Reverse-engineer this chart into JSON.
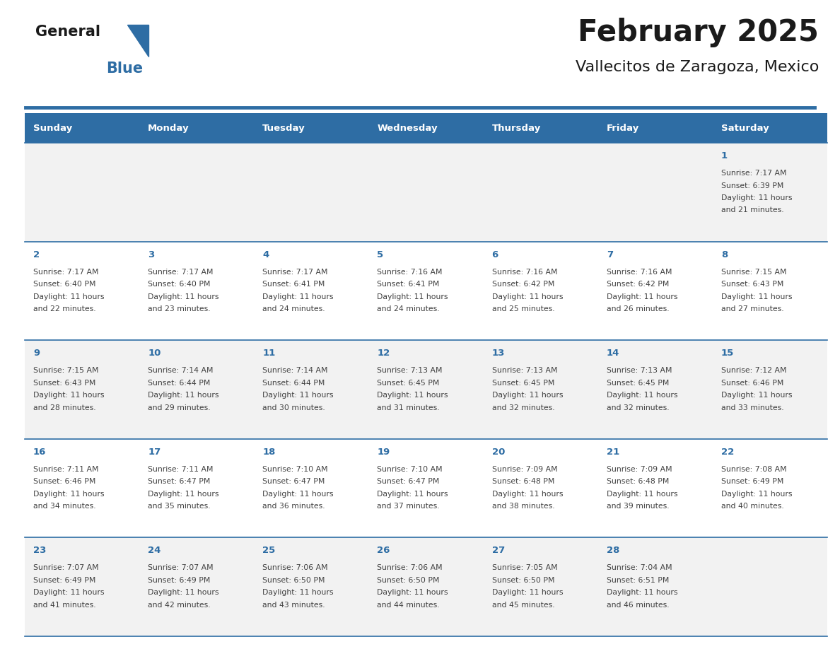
{
  "title": "February 2025",
  "subtitle": "Vallecitos de Zaragoza, Mexico",
  "days_of_week": [
    "Sunday",
    "Monday",
    "Tuesday",
    "Wednesday",
    "Thursday",
    "Friday",
    "Saturday"
  ],
  "header_bg": "#2E6DA4",
  "header_text": "#FFFFFF",
  "cell_bg_odd": "#F2F2F2",
  "cell_bg_even": "#FFFFFF",
  "divider_color": "#2E6DA4",
  "text_color": "#404040",
  "day_num_color": "#2E6DA4",
  "logo_general_color": "#1a1a1a",
  "logo_blue_color": "#2E6DA4",
  "logo_triangle_color": "#2E6DA4",
  "calendar_data": [
    [
      null,
      null,
      null,
      null,
      null,
      null,
      {
        "day": 1,
        "sunrise": "7:17 AM",
        "sunset": "6:39 PM",
        "daylight": "11 hours",
        "daylight2": "and 21 minutes."
      }
    ],
    [
      {
        "day": 2,
        "sunrise": "7:17 AM",
        "sunset": "6:40 PM",
        "daylight": "11 hours",
        "daylight2": "and 22 minutes."
      },
      {
        "day": 3,
        "sunrise": "7:17 AM",
        "sunset": "6:40 PM",
        "daylight": "11 hours",
        "daylight2": "and 23 minutes."
      },
      {
        "day": 4,
        "sunrise": "7:17 AM",
        "sunset": "6:41 PM",
        "daylight": "11 hours",
        "daylight2": "and 24 minutes."
      },
      {
        "day": 5,
        "sunrise": "7:16 AM",
        "sunset": "6:41 PM",
        "daylight": "11 hours",
        "daylight2": "and 24 minutes."
      },
      {
        "day": 6,
        "sunrise": "7:16 AM",
        "sunset": "6:42 PM",
        "daylight": "11 hours",
        "daylight2": "and 25 minutes."
      },
      {
        "day": 7,
        "sunrise": "7:16 AM",
        "sunset": "6:42 PM",
        "daylight": "11 hours",
        "daylight2": "and 26 minutes."
      },
      {
        "day": 8,
        "sunrise": "7:15 AM",
        "sunset": "6:43 PM",
        "daylight": "11 hours",
        "daylight2": "and 27 minutes."
      }
    ],
    [
      {
        "day": 9,
        "sunrise": "7:15 AM",
        "sunset": "6:43 PM",
        "daylight": "11 hours",
        "daylight2": "and 28 minutes."
      },
      {
        "day": 10,
        "sunrise": "7:14 AM",
        "sunset": "6:44 PM",
        "daylight": "11 hours",
        "daylight2": "and 29 minutes."
      },
      {
        "day": 11,
        "sunrise": "7:14 AM",
        "sunset": "6:44 PM",
        "daylight": "11 hours",
        "daylight2": "and 30 minutes."
      },
      {
        "day": 12,
        "sunrise": "7:13 AM",
        "sunset": "6:45 PM",
        "daylight": "11 hours",
        "daylight2": "and 31 minutes."
      },
      {
        "day": 13,
        "sunrise": "7:13 AM",
        "sunset": "6:45 PM",
        "daylight": "11 hours",
        "daylight2": "and 32 minutes."
      },
      {
        "day": 14,
        "sunrise": "7:13 AM",
        "sunset": "6:45 PM",
        "daylight": "11 hours",
        "daylight2": "and 32 minutes."
      },
      {
        "day": 15,
        "sunrise": "7:12 AM",
        "sunset": "6:46 PM",
        "daylight": "11 hours",
        "daylight2": "and 33 minutes."
      }
    ],
    [
      {
        "day": 16,
        "sunrise": "7:11 AM",
        "sunset": "6:46 PM",
        "daylight": "11 hours",
        "daylight2": "and 34 minutes."
      },
      {
        "day": 17,
        "sunrise": "7:11 AM",
        "sunset": "6:47 PM",
        "daylight": "11 hours",
        "daylight2": "and 35 minutes."
      },
      {
        "day": 18,
        "sunrise": "7:10 AM",
        "sunset": "6:47 PM",
        "daylight": "11 hours",
        "daylight2": "and 36 minutes."
      },
      {
        "day": 19,
        "sunrise": "7:10 AM",
        "sunset": "6:47 PM",
        "daylight": "11 hours",
        "daylight2": "and 37 minutes."
      },
      {
        "day": 20,
        "sunrise": "7:09 AM",
        "sunset": "6:48 PM",
        "daylight": "11 hours",
        "daylight2": "and 38 minutes."
      },
      {
        "day": 21,
        "sunrise": "7:09 AM",
        "sunset": "6:48 PM",
        "daylight": "11 hours",
        "daylight2": "and 39 minutes."
      },
      {
        "day": 22,
        "sunrise": "7:08 AM",
        "sunset": "6:49 PM",
        "daylight": "11 hours",
        "daylight2": "and 40 minutes."
      }
    ],
    [
      {
        "day": 23,
        "sunrise": "7:07 AM",
        "sunset": "6:49 PM",
        "daylight": "11 hours",
        "daylight2": "and 41 minutes."
      },
      {
        "day": 24,
        "sunrise": "7:07 AM",
        "sunset": "6:49 PM",
        "daylight": "11 hours",
        "daylight2": "and 42 minutes."
      },
      {
        "day": 25,
        "sunrise": "7:06 AM",
        "sunset": "6:50 PM",
        "daylight": "11 hours",
        "daylight2": "and 43 minutes."
      },
      {
        "day": 26,
        "sunrise": "7:06 AM",
        "sunset": "6:50 PM",
        "daylight": "11 hours",
        "daylight2": "and 44 minutes."
      },
      {
        "day": 27,
        "sunrise": "7:05 AM",
        "sunset": "6:50 PM",
        "daylight": "11 hours",
        "daylight2": "and 45 minutes."
      },
      {
        "day": 28,
        "sunrise": "7:04 AM",
        "sunset": "6:51 PM",
        "daylight": "11 hours",
        "daylight2": "and 46 minutes."
      },
      null
    ]
  ],
  "fig_width": 11.88,
  "fig_height": 9.18
}
